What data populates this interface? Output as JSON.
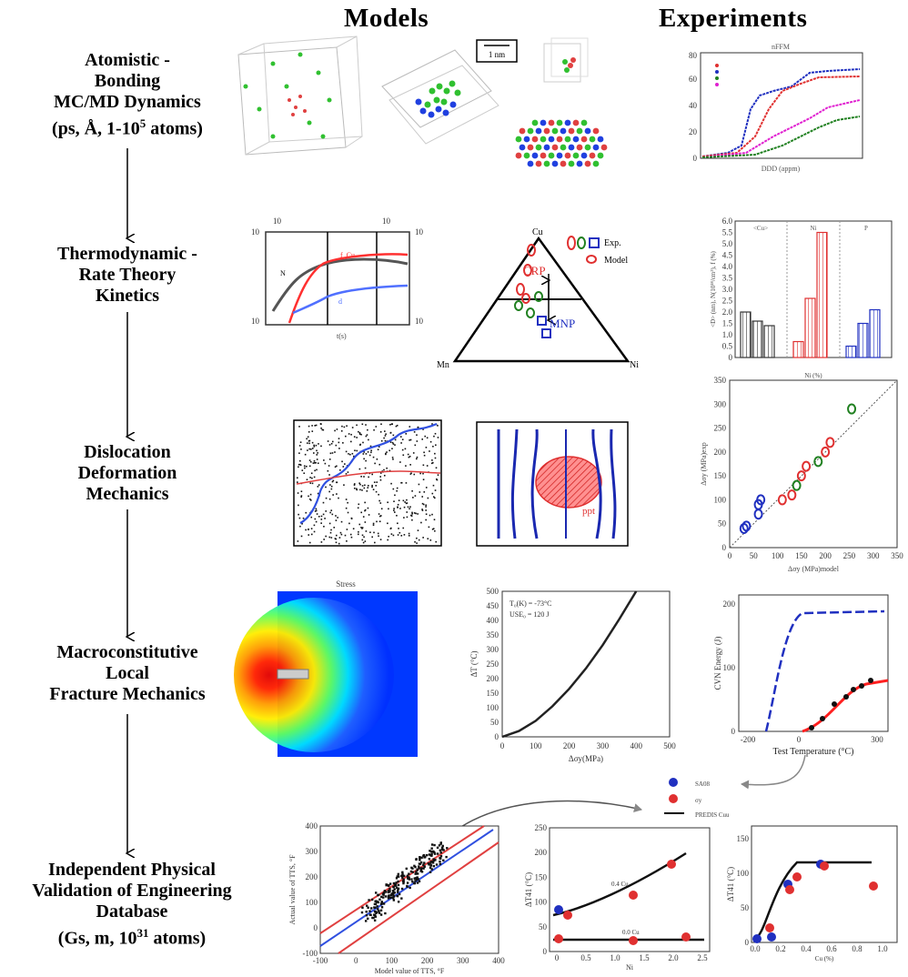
{
  "headers": {
    "models": "Models",
    "experiments": "Experiments"
  },
  "stages": [
    {
      "lines": [
        "Atomistic -",
        "Bonding",
        "MC/MD Dynamics"
      ],
      "scale_pre": "(ps, Å, 1-10",
      "scale_sup": "5",
      "scale_post": " atoms)"
    },
    {
      "lines": [
        "Thermodynamic -",
        "Rate Theory",
        "Kinetics"
      ]
    },
    {
      "lines": [
        "Dislocation",
        "Deformation",
        "Mechanics"
      ]
    },
    {
      "lines": [
        "Macroconstitutive",
        "Local",
        "Fracture Mechanics"
      ]
    },
    {
      "lines": [
        "Independent Physical",
        "Validation of Engineering",
        "Database"
      ],
      "scale_pre": "(Gs, m, 10",
      "scale_sup": "31",
      "scale_post": " atoms)"
    }
  ],
  "scale_bar": "1 nm",
  "ternary": {
    "apex": "Cu",
    "left": "Mn",
    "right": "Ni",
    "crp": "CRP",
    "mnp": "MNP",
    "legend_exp": "Exp.",
    "legend_model": "Model"
  },
  "bar_chart": {
    "groups": [
      "<Cu>",
      "Ni",
      "P"
    ],
    "xlabel": "Ni (%)",
    "ylabel": "<D> (nm), N(10¹⁸/cm³), f (%)",
    "ylim": [
      0,
      6
    ],
    "ticks": [
      "0",
      "0.5",
      "1.0",
      "1.5",
      "2.0",
      "2.5",
      "3.0",
      "3.5",
      "4.0",
      "4.5",
      "5.0",
      "5.5",
      "6.0"
    ],
    "colors": [
      "#333333",
      "#e03030",
      "#2030c0"
    ],
    "values": [
      [
        2.0,
        1.6,
        1.4
      ],
      [
        0.7,
        2.6,
        5.5
      ],
      [
        0.5,
        1.5,
        2.1
      ]
    ]
  },
  "parity_chart": {
    "ticks": [
      "0",
      "50",
      "100",
      "150",
      "200",
      "250",
      "300",
      "350"
    ],
    "xlabel": "Δσy (MPa)model",
    "ylabel": "Δσy (MPa)exp",
    "points": [
      [
        30,
        40
      ],
      [
        35,
        45
      ],
      [
        60,
        70
      ],
      [
        60,
        90
      ],
      [
        65,
        100
      ],
      [
        110,
        100
      ],
      [
        130,
        110
      ],
      [
        140,
        130
      ],
      [
        150,
        150
      ],
      [
        160,
        170
      ],
      [
        185,
        180
      ],
      [
        200,
        200
      ],
      [
        210,
        220
      ],
      [
        255,
        290
      ]
    ]
  },
  "stress_label": "Stress",
  "dt_chart": {
    "type": "line",
    "ann1": "T₀(K) = -73°C",
    "ann2": "USE₀ = 120 J",
    "xlabel": "Δσy(MPa)",
    "ylabel": "ΔT (°C)",
    "xticks": [
      "0",
      "100",
      "200",
      "300",
      "400",
      "500"
    ],
    "yticks": [
      "0",
      "50",
      "100",
      "150",
      "200",
      "250",
      "300",
      "350",
      "400",
      "450",
      "500"
    ],
    "x": [
      0,
      50,
      100,
      150,
      200,
      250,
      300,
      350,
      400
    ],
    "y": [
      0,
      20,
      55,
      105,
      165,
      235,
      315,
      405,
      500
    ]
  },
  "cvn_chart": {
    "ylabel": "CVN Energy (J)",
    "xlabel": "Test Temperature (°C)",
    "xticks": [
      "-200",
      "0",
      "300"
    ],
    "yticks": [
      "0",
      "100",
      "200"
    ]
  },
  "legend_bottom": {
    "item1": "SA08",
    "item2": "σy",
    "item3": "PREDIS Cuu"
  },
  "tts_chart": {
    "xlabel": "Model value of TTS, °F",
    "ylabel": "Actual value of TTS, °F",
    "xticks": [
      "-100",
      "0",
      "100",
      "200",
      "300",
      "400"
    ],
    "yticks": [
      "-100",
      "0",
      "100",
      "200",
      "300",
      "400"
    ]
  },
  "ni_chart": {
    "ylabel": "ΔT41 (°C)",
    "xlabel": "Ni",
    "curve1": "0.4 Cu",
    "curve2": "0.0 Cu",
    "yticks": [
      "0",
      "50",
      "100",
      "150",
      "200",
      "250"
    ],
    "xticks": [
      "0",
      "0.5",
      "1.0",
      "1.5",
      "2.0",
      "2.5"
    ]
  },
  "cu_chart": {
    "ylabel": "ΔT41 (°C)",
    "xlabel": "Cu (%)",
    "yticks": [
      "0",
      "50",
      "100",
      "150"
    ],
    "xticks": [
      "0.0",
      "0.2",
      "0.4",
      "0.6",
      "0.8",
      "1.0"
    ]
  },
  "md_top_label": "nFFM",
  "md_x_label": "DDD (appm)"
}
